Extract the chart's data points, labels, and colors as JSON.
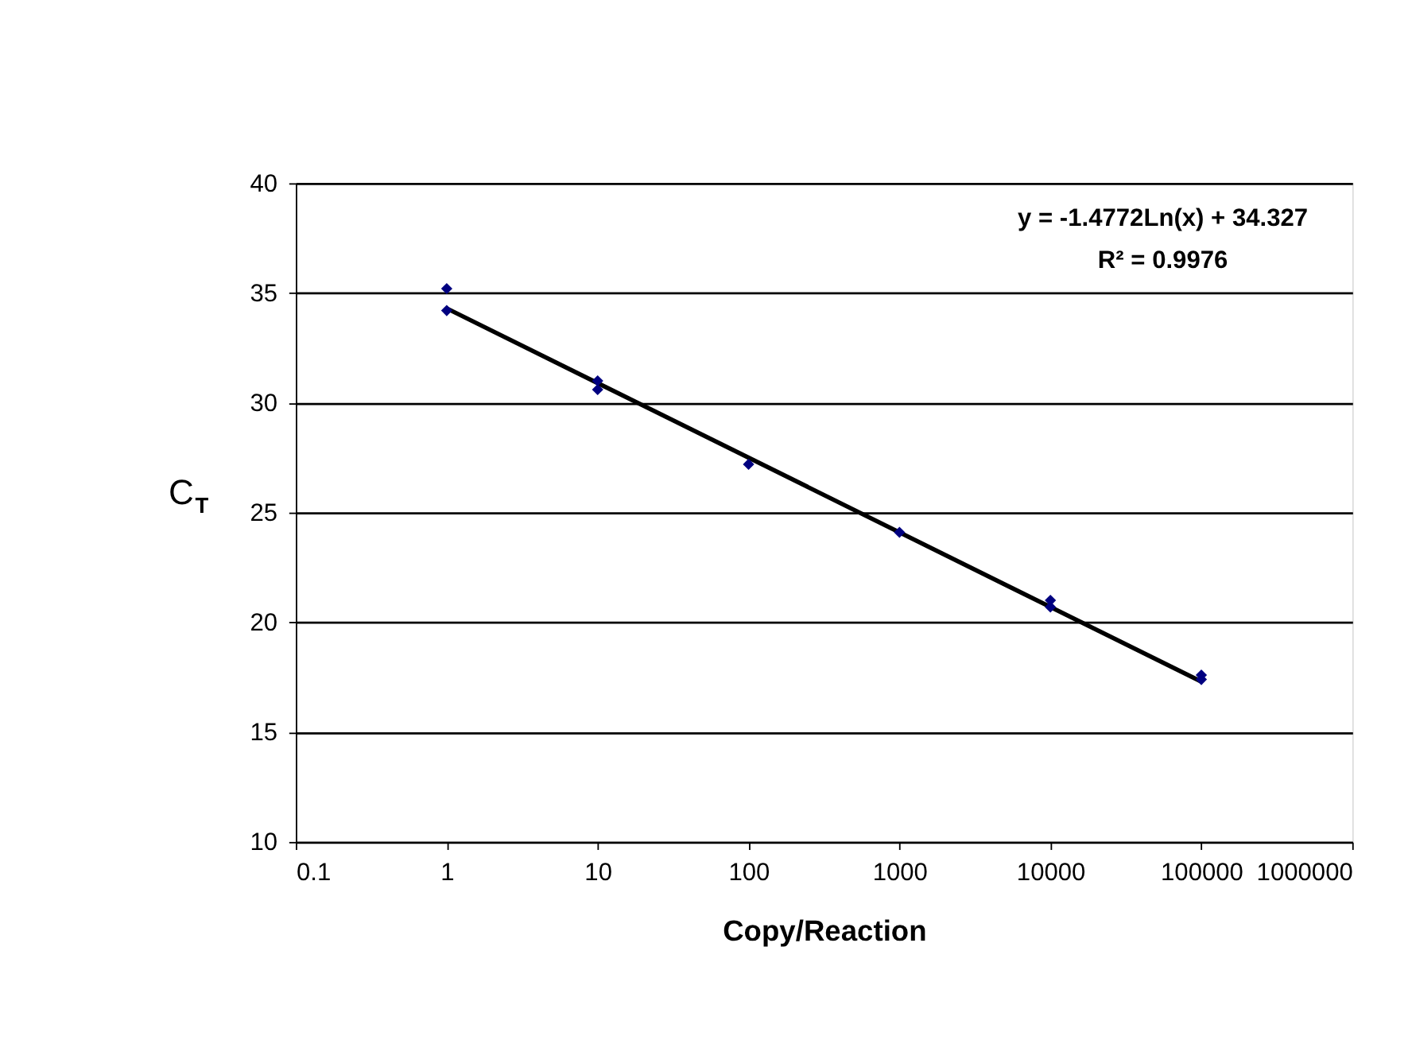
{
  "chart_data": {
    "type": "scatter",
    "xlabel": "Copy/Reaction",
    "ylabel": "C$_{T}$",
    "log": "x",
    "xlim": [
      0.1,
      1000000
    ],
    "xticks": [
      0.1,
      1,
      10,
      100,
      1000,
      10000,
      100000,
      1000000
    ],
    "ylim": [
      10,
      40
    ],
    "yticks": [
      10,
      15,
      20,
      25,
      30,
      35,
      40
    ],
    "grid": "y",
    "marker": "diamond",
    "series": [
      {
        "color": "#000080",
        "x": [
          1,
          1,
          10,
          10,
          100,
          1000,
          10000,
          10000,
          100000,
          100000
        ],
        "values": [
          35.2,
          34.2,
          31.0,
          30.6,
          27.2,
          24.1,
          21.0,
          20.7,
          17.6,
          17.4
        ]
      },
      {
        "type": "line",
        "color": "#000000",
        "marker": "none",
        "x": [
          1,
          100000
        ],
        "values": [
          34.3,
          17.3
        ]
      }
    ],
    "annotations": [
      "y = -1.4772Ln(x) + 34.327",
      "R² = 0.9976"
    ]
  }
}
